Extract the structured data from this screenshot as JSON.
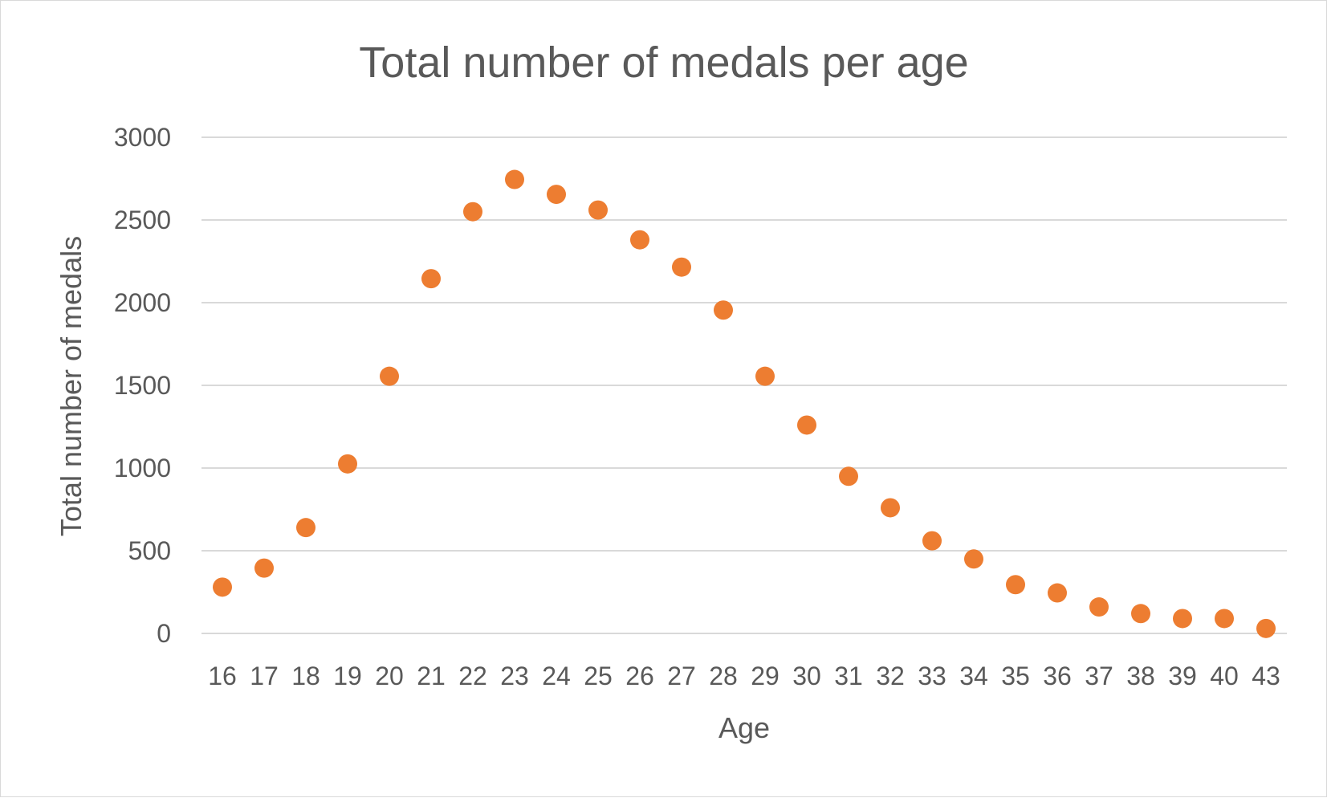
{
  "chart_data": {
    "type": "scatter",
    "title": "Total number of medals per age",
    "xlabel": "Age",
    "ylabel": "Total number of medals",
    "categories": [
      "16",
      "17",
      "18",
      "19",
      "20",
      "21",
      "22",
      "23",
      "24",
      "25",
      "26",
      "27",
      "28",
      "29",
      "30",
      "31",
      "32",
      "33",
      "34",
      "35",
      "36",
      "37",
      "38",
      "39",
      "40",
      "43"
    ],
    "series": [
      {
        "values": [
          280,
          395,
          640,
          1025,
          1555,
          2145,
          2550,
          2745,
          2655,
          2560,
          2380,
          2215,
          1955,
          1555,
          1260,
          950,
          760,
          560,
          450,
          295,
          245,
          160,
          120,
          90,
          90,
          30
        ]
      }
    ],
    "yticks": [
      "0",
      "500",
      "1000",
      "1500",
      "2000",
      "2500",
      "3000"
    ],
    "ylim": [
      0,
      3000
    ],
    "grid": true,
    "legend": "none",
    "colors": {
      "marker": "#ED7D31",
      "grid": "#D9D9D9",
      "text": "#595959"
    }
  }
}
